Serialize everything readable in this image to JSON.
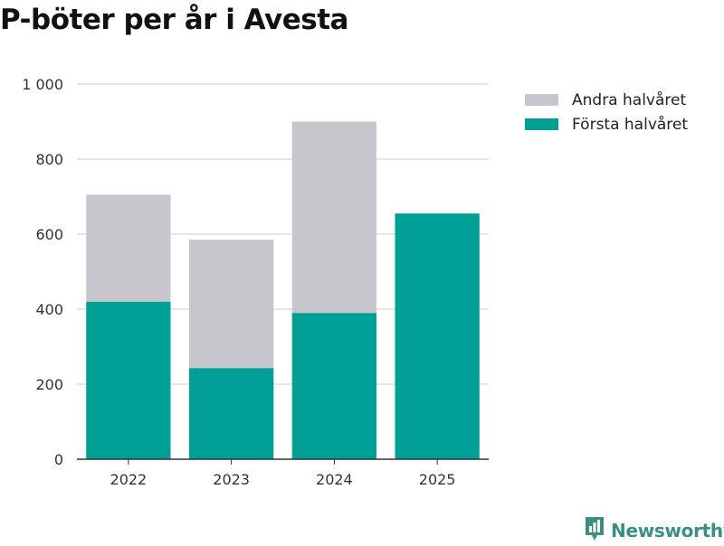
{
  "title": "P-böter per år i Avesta",
  "chart_data": {
    "type": "bar",
    "stacked": true,
    "title": "P-böter per år i Avesta",
    "categories": [
      "2022",
      "2023",
      "2024",
      "2025"
    ],
    "series": [
      {
        "name": "Första halvåret",
        "color": "#00a096",
        "values": [
          420,
          243,
          390,
          655
        ]
      },
      {
        "name": "Andra halvåret",
        "color": "#c6c6cc",
        "values": [
          285,
          342,
          510,
          0
        ]
      }
    ],
    "ylim": [
      0,
      1000
    ],
    "yticks": [
      0,
      200,
      400,
      600,
      800,
      1000
    ],
    "ytick_labels": [
      "0",
      "200",
      "400",
      "600",
      "800",
      "1 000"
    ],
    "grid": true,
    "legend_position": "top-right"
  },
  "legend": [
    {
      "label": "Andra halvåret",
      "color": "#c6c6cc"
    },
    {
      "label": "Första halvåret",
      "color": "#00a096"
    }
  ],
  "brand": {
    "name": "Newsworthy",
    "icon": "newsworthy-logo-icon",
    "color": "#3b8f80"
  }
}
